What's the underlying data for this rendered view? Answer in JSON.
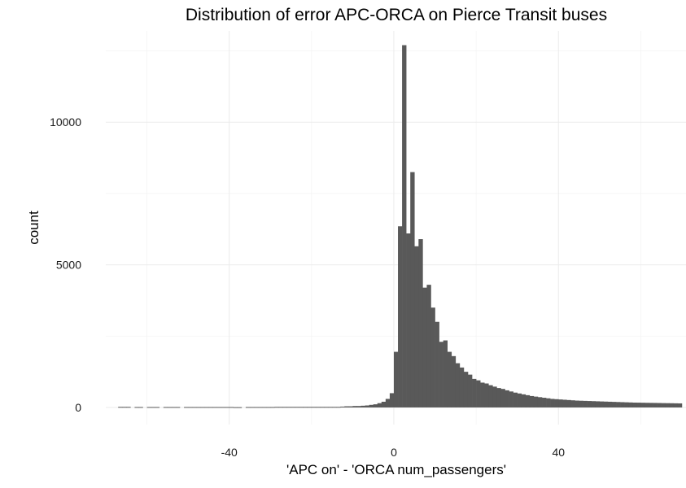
{
  "chart_data": {
    "type": "bar",
    "subtype": "histogram",
    "title": "Distribution of error APC-ORCA on Pierce Transit buses",
    "xlabel": "'APC on' - 'ORCA num_passengers'",
    "ylabel": "count",
    "xlim": [
      -70,
      71
    ],
    "ylim": [
      -600,
      13200
    ],
    "x_ticks": [
      -40,
      0,
      40
    ],
    "x_tick_labels": [
      "-40",
      "0",
      "40"
    ],
    "y_ticks": [
      0,
      5000,
      10000
    ],
    "y_tick_labels": [
      "0",
      "5000",
      "10000"
    ],
    "x_minor_ticks": [
      -60,
      -20,
      20,
      60
    ],
    "y_minor_ticks": [
      2500,
      7500,
      12500
    ],
    "grid": true,
    "bar_color": "#595959",
    "binwidth": 1,
    "bin_starts": [
      -67,
      -66,
      -65,
      -64,
      -63,
      -62,
      -61,
      -60,
      -59,
      -58,
      -57,
      -56,
      -55,
      -54,
      -53,
      -52,
      -51,
      -50,
      -49,
      -48,
      -47,
      -46,
      -45,
      -44,
      -43,
      -42,
      -41,
      -40,
      -39,
      -38,
      -37,
      -36,
      -35,
      -34,
      -33,
      -32,
      -31,
      -30,
      -29,
      -28,
      -27,
      -26,
      -25,
      -24,
      -23,
      -22,
      -21,
      -20,
      -19,
      -18,
      -17,
      -16,
      -15,
      -14,
      -13,
      -12,
      -11,
      -10,
      -9,
      -8,
      -7,
      -6,
      -5,
      -4,
      -3,
      -2,
      -1,
      0,
      1,
      2,
      3,
      4,
      5,
      6,
      7,
      8,
      9,
      10,
      11,
      12,
      13,
      14,
      15,
      16,
      17,
      18,
      19,
      20,
      21,
      22,
      23,
      24,
      25,
      26,
      27,
      28,
      29,
      30,
      31,
      32,
      33,
      34,
      35,
      36,
      37,
      38,
      39,
      40,
      41,
      42,
      43,
      44,
      45,
      46,
      47,
      48,
      49,
      50,
      51,
      52,
      53,
      54,
      55,
      56,
      57,
      58,
      59,
      60,
      61,
      62,
      63,
      64,
      65,
      66,
      67,
      68,
      69
    ],
    "values": [
      20,
      20,
      20,
      0,
      15,
      15,
      0,
      15,
      15,
      15,
      0,
      15,
      15,
      15,
      15,
      0,
      15,
      15,
      15,
      15,
      15,
      15,
      15,
      15,
      15,
      15,
      15,
      15,
      10,
      10,
      0,
      15,
      15,
      15,
      15,
      15,
      15,
      15,
      20,
      20,
      20,
      20,
      20,
      20,
      20,
      20,
      20,
      20,
      20,
      20,
      20,
      20,
      20,
      20,
      30,
      40,
      40,
      50,
      50,
      60,
      70,
      90,
      110,
      150,
      200,
      300,
      500,
      1950,
      6350,
      12700,
      6100,
      8250,
      5650,
      5900,
      4200,
      4300,
      3500,
      3000,
      2300,
      2350,
      1950,
      1800,
      1550,
      1400,
      1250,
      1150,
      1000,
      950,
      870,
      840,
      780,
      730,
      680,
      650,
      600,
      560,
      520,
      490,
      460,
      430,
      400,
      380,
      360,
      340,
      320,
      300,
      290,
      280,
      270,
      260,
      250,
      240,
      235,
      230,
      225,
      220,
      215,
      210,
      205,
      200,
      195,
      190,
      185,
      180,
      175,
      170,
      168,
      165,
      162,
      160,
      158,
      155,
      152,
      150,
      148,
      145,
      142,
      100
    ]
  }
}
